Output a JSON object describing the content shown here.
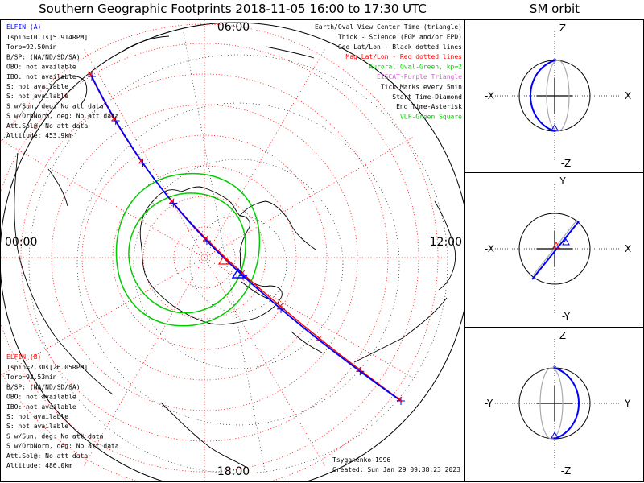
{
  "title": "Southern Geographic Footprints 2018-11-05 16:00 to 17:30 UTC",
  "orbit_title": "SM orbit",
  "hour_labels": {
    "top": "06:00",
    "left": "00:00",
    "right": "12:00",
    "bottom": "18:00"
  },
  "elfin_a": {
    "name": "ELFIN (A)",
    "lines": [
      "Tspin=10.1s[5.914RPM]",
      "Torb=92.50min",
      "B/SP: (NA/ND/SD/SA)",
      "OBO: not available",
      "IBO: not available",
      "S: not available",
      "S: not available",
      "S w/Sun, deg: No att data",
      "S w/OrbNorm, deg: No att data",
      "Att.Sol@: No att data",
      "Altitude: 453.9km"
    ]
  },
  "elfin_b": {
    "name": "ELFIN (B)",
    "lines": [
      "Tspin=2.30s[26.05RPM]",
      "Torb=92.53min",
      "B/SP: (NA/ND/SD/SA)",
      "OBO: not available",
      "IBO: not available",
      "S: not available",
      "S: not available",
      "S w/Sun, deg: No att data",
      "S w/OrbNorm, deg: No att data",
      "Att.Sol@: No att data",
      "Altitude: 486.0km"
    ]
  },
  "legend": [
    {
      "text": "Earth/Oval View Center Time (triangle)",
      "color": "#000000"
    },
    {
      "text": "Thick - Science (FGM and/or EPD)",
      "color": "#000000"
    },
    {
      "text": "Geo Lat/Lon - Black dotted lines",
      "color": "#000000"
    },
    {
      "text": "Mag Lat/Lon - Red dotted lines",
      "color": "#ff0000"
    },
    {
      "text": "Auroral Oval-Green, kp=2",
      "color": "#00cc00"
    },
    {
      "text": "EISCAT-Purple Triangle",
      "color": "#cc66cc"
    },
    {
      "text": "Tick Marks every 5min",
      "color": "#000000"
    },
    {
      "text": "Start Time-Diamond",
      "color": "#000000"
    },
    {
      "text": "End Time-Asterisk",
      "color": "#000000"
    },
    {
      "text": "VLF-Green Square",
      "color": "#00cc00"
    }
  ],
  "footer_model": "Tsyganenko-1996",
  "footer_created": "Created: Sun Jan 29 09:38:23 2023",
  "panels": [
    {
      "top": "Z",
      "bottom": "-Z",
      "left": "-X",
      "right": "X"
    },
    {
      "top": "Y",
      "bottom": "-Y",
      "left": "-X",
      "right": "X"
    },
    {
      "top": "Z",
      "bottom": "-Z",
      "left": "-Y",
      "right": "Y"
    }
  ],
  "colors": {
    "elfin_a": "#0000ff",
    "elfin_b": "#ff0000",
    "oval": "#00cc00",
    "mag_grid": "#ff0000",
    "geo_grid": "#000000"
  }
}
